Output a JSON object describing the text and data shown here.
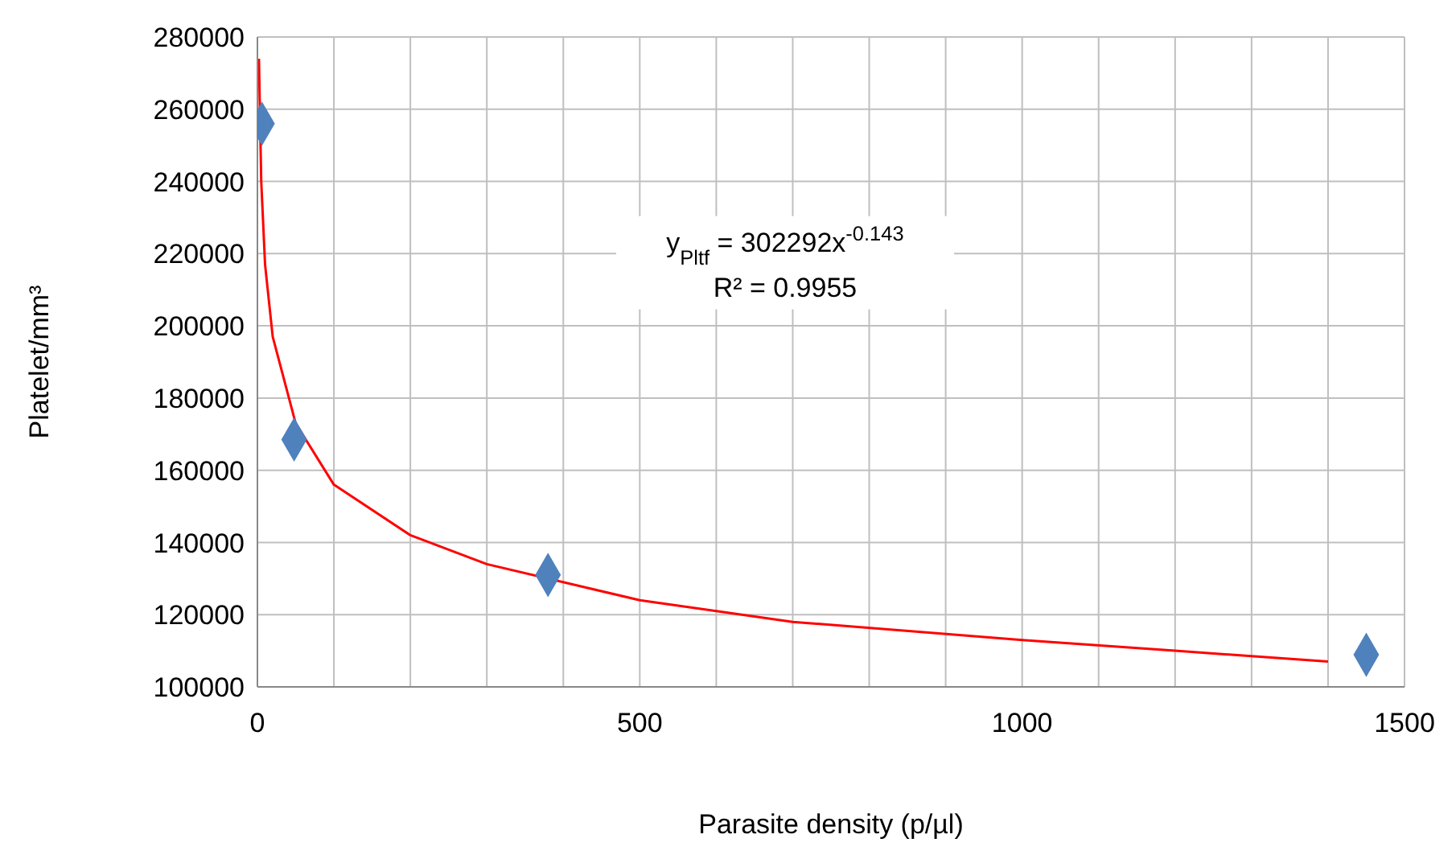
{
  "chart_data": {
    "type": "scatter",
    "xlabel": "Parasite density (p/µl)",
    "ylabel": "Platelet/mm³",
    "xlim": [
      0,
      1500
    ],
    "ylim": [
      100000,
      280000
    ],
    "xticks": [
      0,
      {
        "value": 100,
        "label": null
      },
      {
        "value": 200,
        "label": null
      },
      {
        "value": 300,
        "label": null
      },
      {
        "value": 400,
        "label": null
      },
      500,
      {
        "value": 600,
        "label": null
      },
      {
        "value": 700,
        "label": null
      },
      {
        "value": 800,
        "label": null
      },
      {
        "value": 900,
        "label": null
      },
      1000,
      {
        "value": 1100,
        "label": null
      },
      {
        "value": 1200,
        "label": null
      },
      {
        "value": 1300,
        "label": null
      },
      {
        "value": 1400,
        "label": null
      },
      1500
    ],
    "yticks": [
      100000,
      120000,
      140000,
      160000,
      180000,
      200000,
      220000,
      240000,
      260000,
      280000
    ],
    "grid": true,
    "legend": false,
    "series": [
      {
        "color": "#4f81bd",
        "marker": "diamond",
        "x": [
          6,
          48,
          380,
          1450
        ],
        "values": [
          256000,
          168500,
          131000,
          108900
        ]
      },
      {
        "type": "line",
        "color": "#ff0000",
        "marker": "none",
        "x": [
          2,
          5,
          10,
          20,
          50,
          100,
          200,
          300,
          500,
          700,
          1000,
          1200,
          1400
        ],
        "values": [
          274000,
          240000,
          217000,
          197000,
          173000,
          156000,
          142000,
          134000,
          124000,
          118000,
          113000,
          110000,
          107000
        ]
      }
    ],
    "annotations": [
      "y$_{Pltf}$ = 302292x$^{-0.143}$",
      "R² = 0.9955"
    ]
  }
}
